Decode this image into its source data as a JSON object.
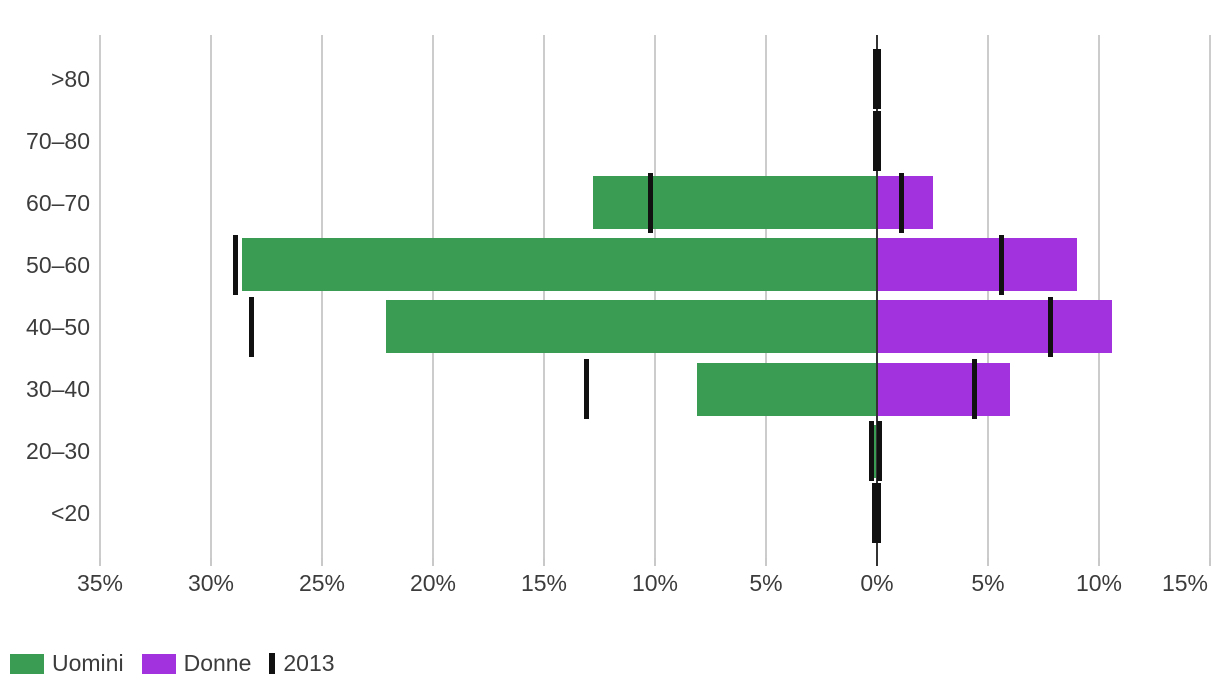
{
  "chart_data": {
    "type": "bar",
    "variant": "population-pyramid-horizontal",
    "title": "",
    "categories": [
      ">80",
      "70–80",
      "60–70",
      "50–60",
      "40–50",
      "30–40",
      "20–30",
      "<20"
    ],
    "series": [
      {
        "name": "Uomini",
        "side": "left",
        "style": "bar",
        "color": "#3a9b52",
        "values": [
          0,
          0,
          12.8,
          28.6,
          22.1,
          8.1,
          0.2,
          0
        ]
      },
      {
        "name": "Donne",
        "side": "right",
        "style": "bar",
        "color": "#a232dd",
        "values": [
          0,
          0,
          2.5,
          9.0,
          10.6,
          6.0,
          0.05,
          0
        ]
      },
      {
        "name": "2013",
        "side": "both",
        "style": "tick",
        "color": "#111111",
        "values_left": [
          0.05,
          0.05,
          10.2,
          28.9,
          28.2,
          13.1,
          0.25,
          0.1
        ],
        "values_right": [
          0.05,
          0.05,
          1.1,
          5.6,
          7.8,
          4.4,
          0.1,
          0.05
        ]
      }
    ],
    "x_axis": {
      "unit": "%",
      "range_left": 35,
      "range_right": 15,
      "ticks": [
        {
          "label": "35%",
          "value": -35
        },
        {
          "label": "30%",
          "value": -30
        },
        {
          "label": "25%",
          "value": -25
        },
        {
          "label": "20%",
          "value": -20
        },
        {
          "label": "15%",
          "value": -15
        },
        {
          "label": "10%",
          "value": -10
        },
        {
          "label": "5%",
          "value": -5
        },
        {
          "label": "0%",
          "value": 0
        },
        {
          "label": "5%",
          "value": 5
        },
        {
          "label": "10%",
          "value": 10
        },
        {
          "label": "15%",
          "value": 15
        }
      ]
    },
    "grid": true,
    "legend_position": "bottom-left",
    "legend": [
      {
        "label": "Uomini",
        "color": "#3a9b52",
        "swatch": "rect"
      },
      {
        "label": "Donne",
        "color": "#a232dd",
        "swatch": "rect"
      },
      {
        "label": "2013",
        "color": "#111111",
        "swatch": "vertical-bar"
      }
    ]
  },
  "colors": {
    "background": "#ffffff",
    "gridline": "#cccccc",
    "zero_axis": "#333333",
    "bar_green": "#3a9b52",
    "bar_purple": "#a232dd",
    "tick_black": "#111111",
    "label_text": "#3c3c3c"
  }
}
